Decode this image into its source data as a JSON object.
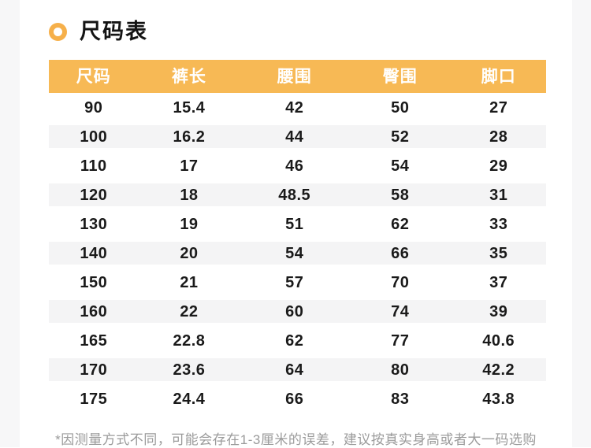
{
  "colors": {
    "accent": "#f6b04a",
    "header_bg": "#f7b955",
    "stripe_bg": "#f4f4f5",
    "page_margin_bg": "#f7f7f8"
  },
  "title": {
    "text": "尺码表",
    "icon": "ring-icon"
  },
  "table": {
    "columns": [
      "尺码",
      "裤长",
      "腰围",
      "臀围",
      "脚口"
    ],
    "rows": [
      [
        "90",
        "15.4",
        "42",
        "50",
        "27"
      ],
      [
        "100",
        "16.2",
        "44",
        "52",
        "28"
      ],
      [
        "110",
        "17",
        "46",
        "54",
        "29"
      ],
      [
        "120",
        "18",
        "48.5",
        "58",
        "31"
      ],
      [
        "130",
        "19",
        "51",
        "62",
        "33"
      ],
      [
        "140",
        "20",
        "54",
        "66",
        "35"
      ],
      [
        "150",
        "21",
        "57",
        "70",
        "37"
      ],
      [
        "160",
        "22",
        "60",
        "74",
        "39"
      ],
      [
        "165",
        "22.8",
        "62",
        "77",
        "40.6"
      ],
      [
        "170",
        "23.6",
        "64",
        "80",
        "42.2"
      ],
      [
        "175",
        "24.4",
        "66",
        "83",
        "43.8"
      ]
    ]
  },
  "footnote": "*因测量方式不同，可能会存在1-3厘米的误差，建议按真实身高或者大一码选购"
}
